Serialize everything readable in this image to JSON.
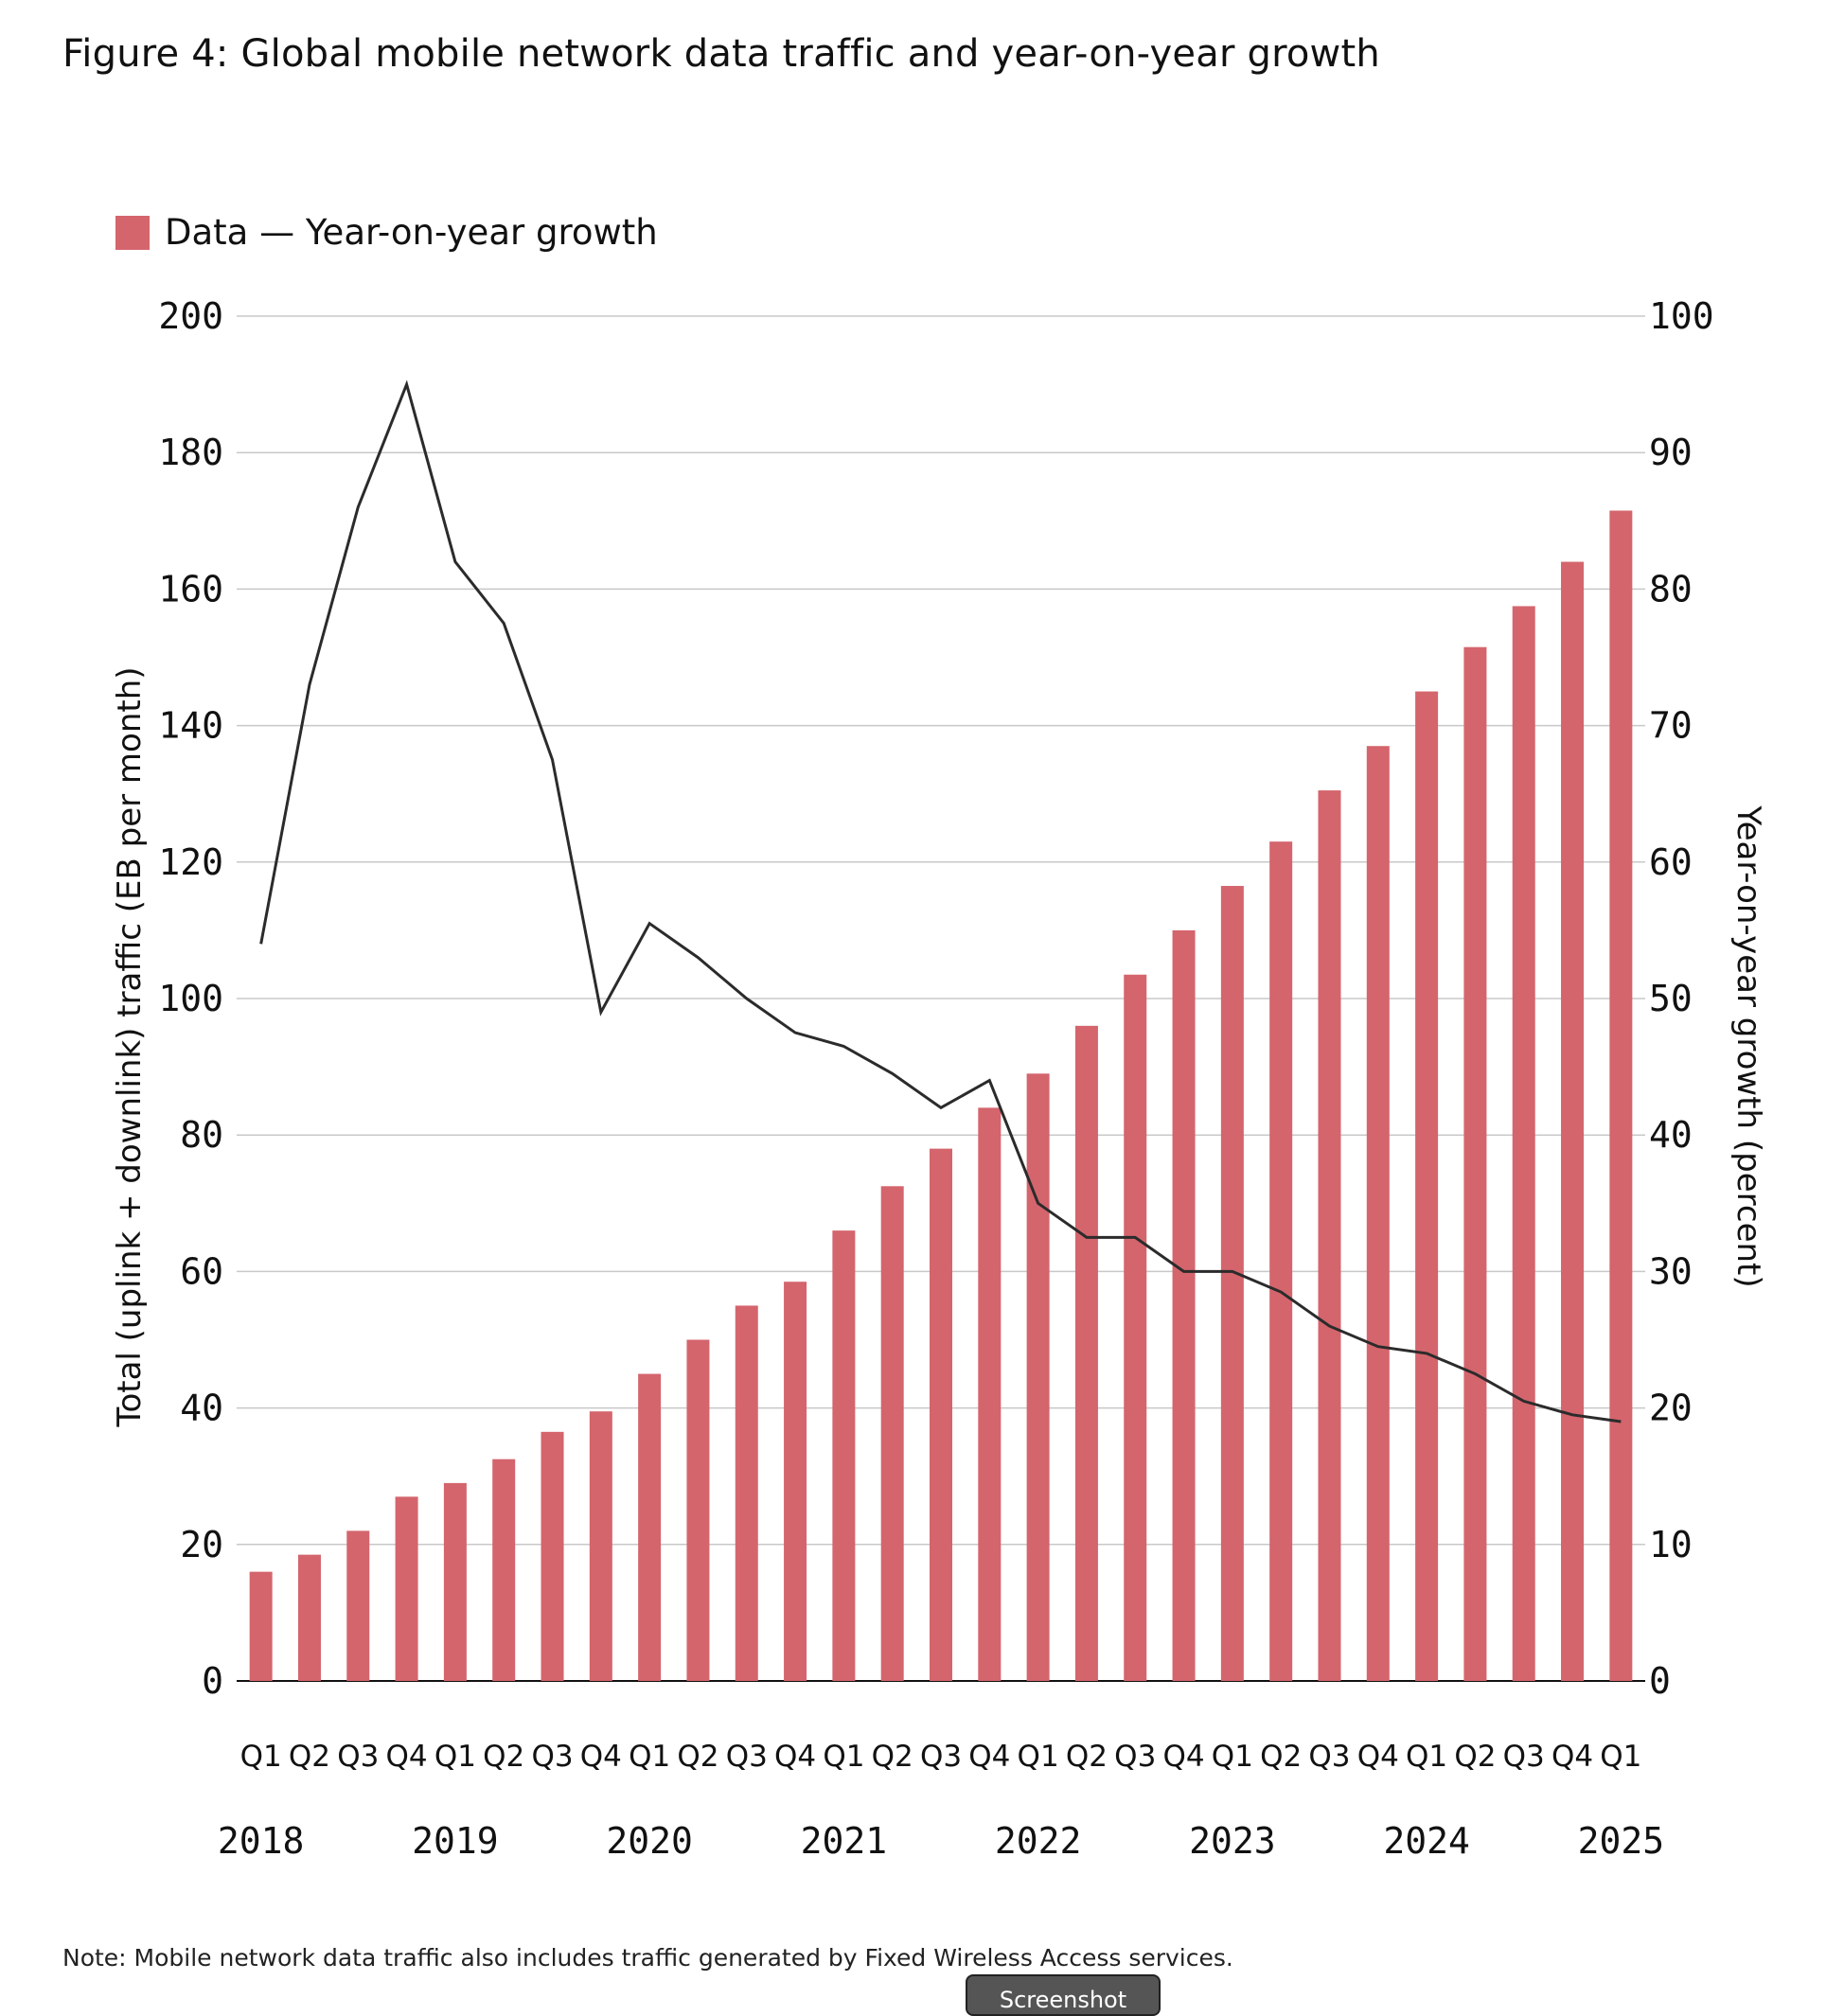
{
  "figure_title": "Figure 4: Global mobile network data traffic and year-on-year growth",
  "note": "Note: Mobile network data traffic also includes traffic generated by Fixed Wireless Access services.",
  "screenshot_button_label": "Screenshot",
  "colors": {
    "bar": "#d4656d",
    "line": "#2b2b2b",
    "grid": "#c8c8c8",
    "axis": "#111111"
  },
  "chart_data": {
    "type": "bar",
    "title": "Figure 4: Global mobile network data traffic and year-on-year growth",
    "legend": {
      "label": "Data — Year-on-year growth",
      "position": "top-left"
    },
    "ylabel": "Total (uplink + downlink) traffic (EB per month)",
    "y2label": "Year-on-year growth (percent)",
    "ylim": [
      0,
      200
    ],
    "y2lim": [
      0,
      100
    ],
    "yticks": [
      0,
      20,
      40,
      60,
      80,
      100,
      120,
      140,
      160,
      180,
      200
    ],
    "y2ticks": [
      0,
      10,
      20,
      30,
      40,
      50,
      60,
      70,
      80,
      90,
      100
    ],
    "grid": true,
    "categories": [
      "Q1",
      "Q2",
      "Q3",
      "Q4",
      "Q1",
      "Q2",
      "Q3",
      "Q4",
      "Q1",
      "Q2",
      "Q3",
      "Q4",
      "Q1",
      "Q2",
      "Q3",
      "Q4",
      "Q1",
      "Q2",
      "Q3",
      "Q4",
      "Q1",
      "Q2",
      "Q3",
      "Q4",
      "Q1",
      "Q2",
      "Q3",
      "Q4",
      "Q1"
    ],
    "years": [
      {
        "label": "2018",
        "index": 0
      },
      {
        "label": "2019",
        "index": 4
      },
      {
        "label": "2020",
        "index": 8
      },
      {
        "label": "2021",
        "index": 12
      },
      {
        "label": "2022",
        "index": 16
      },
      {
        "label": "2023",
        "index": 20
      },
      {
        "label": "2024",
        "index": 24
      },
      {
        "label": "2025",
        "index": 28
      }
    ],
    "series": [
      {
        "type": "bar",
        "axis": "left",
        "values": [
          16,
          18.5,
          22,
          27,
          29,
          32.5,
          36.5,
          39.5,
          45,
          50,
          55,
          58.5,
          66,
          72.5,
          78,
          84,
          89,
          96,
          103.5,
          110,
          116.5,
          123,
          130.5,
          137,
          145,
          151.5,
          157.5,
          164,
          171.5
        ]
      },
      {
        "type": "line",
        "axis": "right",
        "values": [
          54,
          73,
          86,
          95,
          82,
          77.5,
          67.5,
          49,
          55.5,
          53,
          50,
          47.5,
          46.5,
          44.5,
          42,
          44,
          35,
          32.5,
          32.5,
          30,
          30,
          28.5,
          26,
          24.5,
          24,
          22.5,
          20.5,
          19.5,
          19
        ]
      }
    ]
  }
}
